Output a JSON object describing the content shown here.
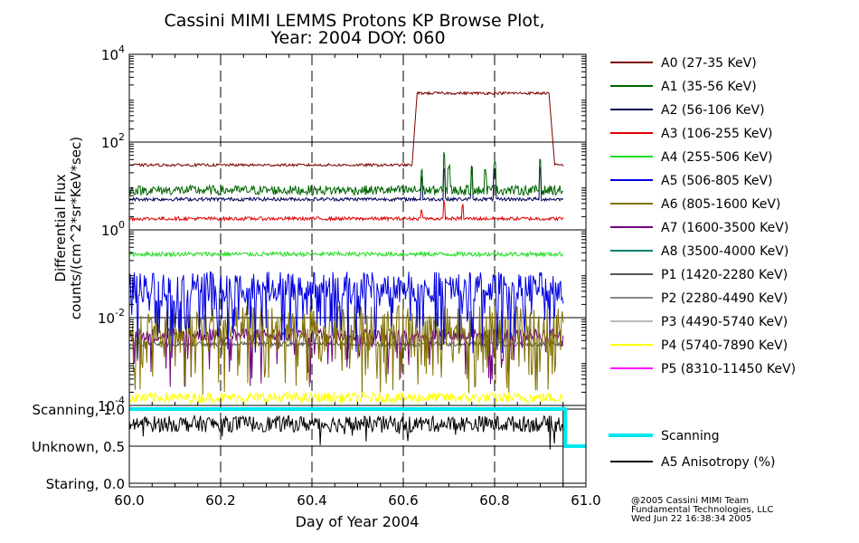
{
  "chart_data": {
    "type": "line",
    "title": "Cassini MIMI LEMMS Protons KP Browse Plot,",
    "subtitle": "Year: 2004 DOY: 060",
    "xlabel": "Day of Year 2004",
    "ylabel": "Differential Flux",
    "ylabel2": "counts/(cm^2*sr*KeV*sec)",
    "x_ticks": [
      "60.0",
      "60.2",
      "60.4",
      "60.6",
      "60.8",
      "61.0"
    ],
    "xlim": [
      60.0,
      61.0
    ],
    "y_scale": "log",
    "ylim": [
      0.0001,
      10000
    ],
    "y_ticks": [
      {
        "base": "10",
        "exp": "4"
      },
      {
        "base": "10",
        "exp": "2"
      },
      {
        "base": "10",
        "exp": "0"
      },
      {
        "base": "10",
        "exp": "-2"
      },
      {
        "base": "10",
        "exp": "-4"
      }
    ],
    "series": [
      {
        "name": "A0 (27-35 KeV)",
        "color": "#7a0000",
        "segments": [
          {
            "x": [
              60.0,
              60.62
            ],
            "y": 30
          },
          {
            "x": [
              60.63,
              60.92
            ],
            "y": 1300
          },
          {
            "x": [
              60.93,
              60.95
            ],
            "y": 30
          }
        ]
      },
      {
        "name": "A1 (35-56 KeV)",
        "color": "#006400",
        "baseline": 8,
        "spikes": [
          {
            "x": 60.64,
            "y": 30
          },
          {
            "x": 60.69,
            "y": 60
          },
          {
            "x": 60.7,
            "y": 40
          },
          {
            "x": 60.75,
            "y": 40
          },
          {
            "x": 60.78,
            "y": 25
          },
          {
            "x": 60.8,
            "y": 50
          },
          {
            "x": 60.9,
            "y": 60
          }
        ]
      },
      {
        "name": "A2 (56-106 KeV)",
        "color": "#00005a",
        "baseline": 5,
        "spikes": [
          {
            "x": 60.64,
            "y": 20
          },
          {
            "x": 60.69,
            "y": 35
          },
          {
            "x": 60.75,
            "y": 30
          },
          {
            "x": 60.8,
            "y": 25
          },
          {
            "x": 60.9,
            "y": 30
          }
        ]
      },
      {
        "name": "A3 (106-255 KeV)",
        "color": "#e00000",
        "baseline": 1.8,
        "spikes": [
          {
            "x": 60.64,
            "y": 3
          },
          {
            "x": 60.69,
            "y": 5
          },
          {
            "x": 60.73,
            "y": 4
          }
        ]
      },
      {
        "name": "A4 (255-506 KeV)",
        "color": "#22dd22",
        "baseline": 0.28
      },
      {
        "name": "A5 (506-805 KeV)",
        "color": "#0000e0",
        "baseline": 0.05
      },
      {
        "name": "A6 (805-1600 KeV)",
        "color": "#807000",
        "baseline": 0.006
      },
      {
        "name": "A7 (1600-3500 KeV)",
        "color": "#700080",
        "baseline": 0.004
      },
      {
        "name": "A8 (3500-4000 KeV)",
        "color": "#008070"
      },
      {
        "name": "P1 (1420-2280 KeV)",
        "color": "#555555",
        "baseline": 0.0025
      },
      {
        "name": "P2 (2280-4490 KeV)",
        "color": "#888888"
      },
      {
        "name": "P3 (4490-5740 KeV)",
        "color": "#bbbbbb"
      },
      {
        "name": "P4 (5740-7890 KeV)",
        "color": "#ffff00",
        "baseline": 0.00015
      },
      {
        "name": "P5 (8310-11450 KeV)",
        "color": "#ff00ff"
      }
    ],
    "lower_panel": {
      "y_ticks": [
        "Scanning, 1.0",
        "Unknown, 0.5",
        "Staring, 0.0"
      ],
      "ylim": [
        0.0,
        1.0
      ],
      "scanning": {
        "name": "Scanning",
        "color": "#00e8f0",
        "segments": [
          {
            "x": [
              60.0,
              60.955
            ],
            "y": 1.0
          },
          {
            "x": [
              60.955,
              61.0
            ],
            "y": 0.5
          }
        ]
      },
      "anisotropy": {
        "name": "A5 Anisotropy (%)",
        "color": "#000000",
        "baseline": 0.8,
        "end_x": 60.95
      }
    }
  },
  "footer": {
    "line1": "@2005 Cassini MIMI Team",
    "line2": "Fundamental Technologies, LLC",
    "line3": "Wed Jun 22 16:38:34 2005"
  }
}
